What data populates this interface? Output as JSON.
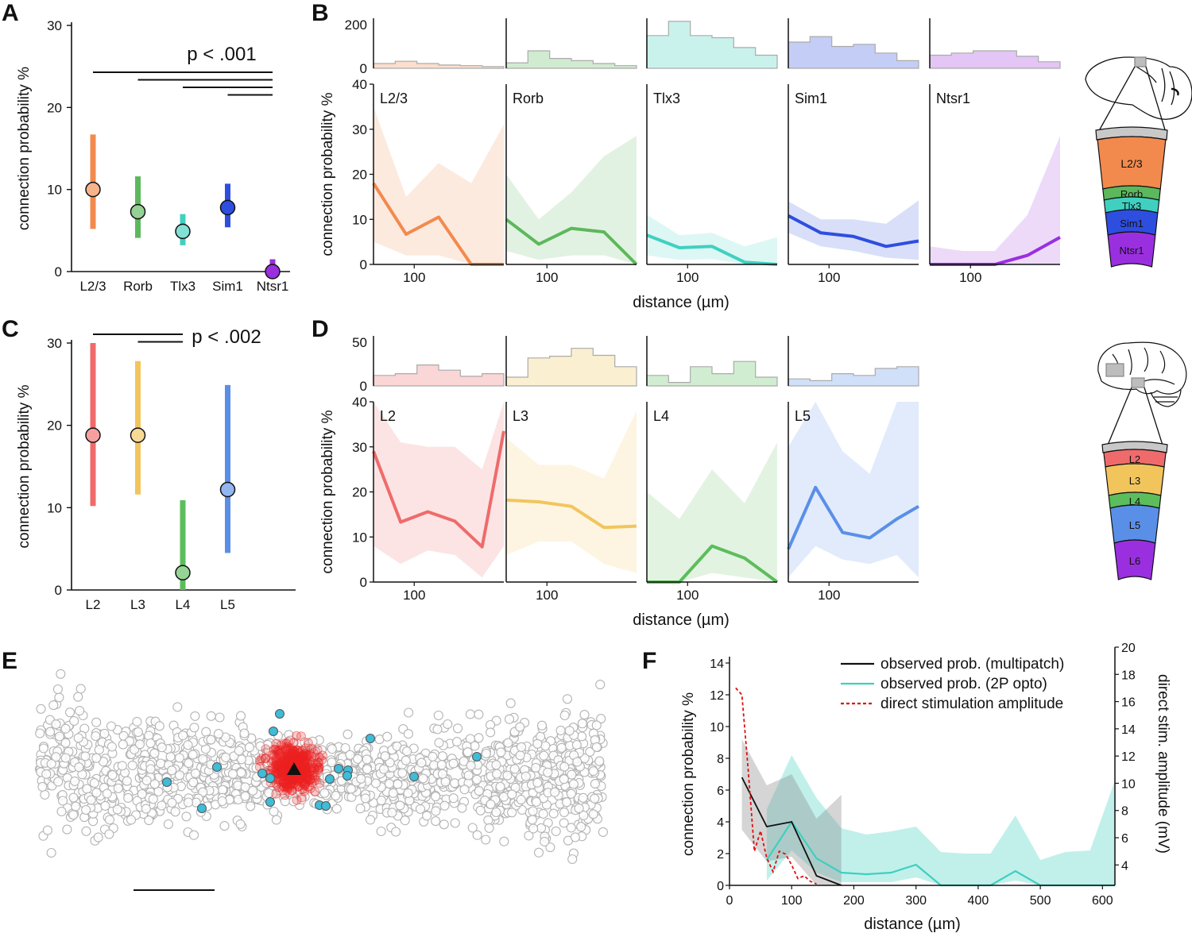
{
  "panel_labels": {
    "a": "A",
    "b": "B",
    "c": "C",
    "d": "D",
    "e": "E",
    "f": "F"
  },
  "colors": {
    "l23": "#f28a4e",
    "rorb": "#5cb85c",
    "tlx3": "#40d0c0",
    "sim1": "#2e4ee0",
    "ntsr1": "#9a2fe0",
    "h_l2": "#ef6b6b",
    "h_l3": "#f2c55c",
    "h_l4": "#5cbd5c",
    "h_l5": "#5a8fe8",
    "h_l6": "#9a2fe0",
    "cell": "#b4b4b4",
    "red": "#ee2222",
    "opto": "#3fbcd8",
    "multipatch": "#111111",
    "opto_line": "#3fcfc0",
    "stim": "#dd1111"
  },
  "chart_data": [
    {
      "id": "A",
      "type": "scatter",
      "ylabel": "connection probability %",
      "ylim": [
        0,
        30
      ],
      "yticks": [
        0,
        10,
        20,
        30
      ],
      "categories": [
        "L2/3",
        "Rorb",
        "Tlx3",
        "Sim1",
        "Ntsr1"
      ],
      "values": [
        10,
        7.3,
        4.9,
        7.8,
        0
      ],
      "ci_low": [
        5.2,
        4.1,
        3.2,
        5.4,
        0
      ],
      "ci_high": [
        16.7,
        11.6,
        7.0,
        10.7,
        1.5
      ],
      "fill_style": [
        "light",
        "light",
        "light",
        "dark",
        "dark"
      ],
      "significance": {
        "label": "p < .001",
        "bars": [
          [
            0,
            4
          ],
          [
            1,
            4
          ],
          [
            2,
            4
          ],
          [
            3,
            4
          ]
        ]
      }
    },
    {
      "id": "B",
      "type": "line",
      "xlabel": "distance (µm)",
      "ylabel": "connection probability %",
      "ylim": [
        0,
        40
      ],
      "yticks": [
        0,
        10,
        20,
        30,
        40
      ],
      "hist_ylim": [
        0,
        200
      ],
      "hist_yticks": [
        0,
        200
      ],
      "xtick_label": "100",
      "panels": [
        {
          "name": "L2/3",
          "x": [
            0,
            60,
            120,
            180,
            240
          ],
          "y": [
            18,
            6.7,
            10.5,
            0,
            0
          ],
          "low": [
            5,
            2,
            2,
            0,
            0
          ],
          "high": [
            35,
            15,
            22.5,
            18,
            31
          ],
          "hist": [
            22,
            32,
            22,
            15,
            12,
            8
          ]
        },
        {
          "name": "Rorb",
          "x": [
            0,
            60,
            120,
            180,
            240
          ],
          "y": [
            10,
            4.5,
            8,
            7.2,
            0
          ],
          "low": [
            3,
            1,
            2,
            2,
            0
          ],
          "high": [
            20,
            10,
            16,
            24,
            28.5
          ],
          "hist": [
            25,
            80,
            45,
            35,
            22,
            12
          ]
        },
        {
          "name": "Tlx3",
          "x": [
            0,
            60,
            120,
            180,
            240
          ],
          "y": [
            6.5,
            3.7,
            4,
            0.5,
            0
          ],
          "low": [
            2,
            1,
            1.2,
            0,
            0
          ],
          "high": [
            11,
            6.5,
            7,
            4,
            6
          ],
          "hist": [
            150,
            215,
            150,
            140,
            95,
            60
          ]
        },
        {
          "name": "Sim1",
          "x": [
            0,
            60,
            120,
            180,
            240
          ],
          "y": [
            10.8,
            7,
            6.2,
            4,
            5.2
          ],
          "low": [
            7,
            4,
            3,
            1.5,
            1
          ],
          "high": [
            14,
            10,
            10,
            9,
            14.2
          ],
          "hist": [
            120,
            145,
            100,
            110,
            70,
            35
          ]
        },
        {
          "name": "Ntsr1",
          "x": [
            0,
            60,
            120,
            180,
            240
          ],
          "y": [
            0,
            0,
            0,
            2,
            6
          ],
          "low": [
            0,
            0,
            0,
            0,
            0
          ],
          "high": [
            4,
            3,
            3,
            11,
            28.5
          ],
          "hist": [
            60,
            70,
            80,
            80,
            55,
            30
          ]
        }
      ]
    },
    {
      "id": "C",
      "type": "scatter",
      "ylabel": "connection probability %",
      "ylim": [
        0,
        30
      ],
      "yticks": [
        0,
        10,
        20,
        30
      ],
      "categories": [
        "L2",
        "L3",
        "L4",
        "L5"
      ],
      "values": [
        18.8,
        18.8,
        2.1,
        12.2
      ],
      "ci_low": [
        10.2,
        11.6,
        0,
        4.5
      ],
      "ci_high": [
        30,
        27.8,
        10.9,
        24.9
      ],
      "fill_style": [
        "light",
        "light",
        "light",
        "light"
      ],
      "significance": {
        "label": "p < .002",
        "bars": [
          [
            0,
            2
          ],
          [
            1,
            2
          ]
        ]
      }
    },
    {
      "id": "D",
      "type": "line",
      "xlabel": "distance (µm)",
      "ylabel": "connection probability %",
      "ylim": [
        0,
        40
      ],
      "yticks": [
        0,
        10,
        20,
        30,
        40
      ],
      "hist_ylim": [
        0,
        50
      ],
      "hist_yticks": [
        0,
        50
      ],
      "xtick_label": "100",
      "panels": [
        {
          "name": "L2",
          "x": [
            0,
            50,
            100,
            150,
            200,
            240
          ],
          "y": [
            29,
            13.3,
            15.6,
            13.5,
            7.8,
            33.5
          ],
          "low": [
            8,
            4,
            7,
            6,
            1,
            8
          ],
          "high": [
            40,
            31,
            30,
            30,
            25,
            40
          ],
          "hist": [
            12,
            14,
            24,
            18,
            11,
            14
          ]
        },
        {
          "name": "L3",
          "x": [
            0,
            60,
            120,
            180,
            240
          ],
          "y": [
            18.2,
            17.8,
            16.8,
            12.1,
            12.4
          ],
          "low": [
            6,
            9,
            9,
            4,
            2
          ],
          "high": [
            32,
            26,
            26,
            23,
            38
          ],
          "hist": [
            10,
            32,
            34,
            43,
            35,
            22
          ]
        },
        {
          "name": "L4",
          "x": [
            0,
            60,
            120,
            180,
            240
          ],
          "y": [
            0,
            0,
            8,
            5.3,
            0
          ],
          "low": [
            0,
            0,
            2,
            1,
            0
          ],
          "high": [
            20,
            14,
            25,
            17.5,
            31
          ],
          "hist": [
            12,
            4,
            22,
            14,
            28,
            10
          ]
        },
        {
          "name": "L5",
          "x": [
            0,
            50,
            100,
            150,
            200,
            240
          ],
          "y": [
            7.3,
            21,
            11,
            9.8,
            14,
            16.8
          ],
          "low": [
            1,
            8,
            5,
            4,
            6,
            1
          ],
          "high": [
            30,
            40,
            29,
            24,
            40,
            40
          ],
          "hist": [
            8,
            6,
            14,
            12,
            20,
            22
          ]
        }
      ]
    },
    {
      "id": "E",
      "type": "scatter",
      "description_items": [
        "gray circles: cells",
        "red circles",
        "cyan circles",
        "black triangle"
      ]
    },
    {
      "id": "F",
      "type": "line",
      "xlabel": "distance (µm)",
      "ylabel": "connection probability %",
      "ylabel2": "direct stim. amplitude (mV)",
      "xlim": [
        0,
        620
      ],
      "xticks": [
        0,
        100,
        200,
        300,
        400,
        500,
        600
      ],
      "ylim": [
        0,
        15
      ],
      "yticks": [
        0,
        2,
        4,
        6,
        8,
        10,
        12,
        14
      ],
      "y2lim": [
        2.5,
        20
      ],
      "y2ticks": [
        4,
        6,
        8,
        10,
        12,
        14,
        16,
        18,
        20
      ],
      "series": [
        {
          "name": "observed prob. (multipatch)",
          "style": "solid",
          "x": [
            20,
            60,
            100,
            140,
            180
          ],
          "y": [
            6.8,
            3.7,
            4,
            0.6,
            0
          ],
          "low": [
            3.5,
            1.5,
            1.8,
            0,
            0
          ],
          "high": [
            9.2,
            6.3,
            7,
            4.2,
            5.7
          ]
        },
        {
          "name": "observed prob. (2P opto)",
          "style": "solid",
          "x": [
            60,
            100,
            140,
            180,
            220,
            260,
            300,
            340,
            380,
            420,
            460,
            500,
            540,
            580,
            620
          ],
          "y": [
            1.6,
            4,
            1.7,
            0.8,
            0.7,
            0.8,
            1.3,
            0,
            0,
            0,
            0.9,
            0,
            0,
            0,
            0
          ],
          "low": [
            0.3,
            2.2,
            0.8,
            0.2,
            0.2,
            0.2,
            0.5,
            0,
            0,
            0,
            0.3,
            0,
            0,
            0,
            0
          ],
          "high": [
            4.8,
            8.2,
            5.5,
            3.6,
            3.2,
            3.4,
            3.7,
            2.1,
            2,
            2,
            4.4,
            1.6,
            2.1,
            2.2,
            6.6
          ]
        },
        {
          "name": "direct stimulation amplitude",
          "style": "dashed",
          "x": [
            10,
            20,
            30,
            40,
            50,
            60,
            70,
            80,
            90,
            100,
            110,
            120,
            130,
            140
          ],
          "y": [
            17,
            16.5,
            11,
            5,
            6.5,
            4.5,
            3.5,
            5,
            4.8,
            4,
            3,
            3.2,
            2.8,
            2.6
          ]
        }
      ]
    }
  ]
}
